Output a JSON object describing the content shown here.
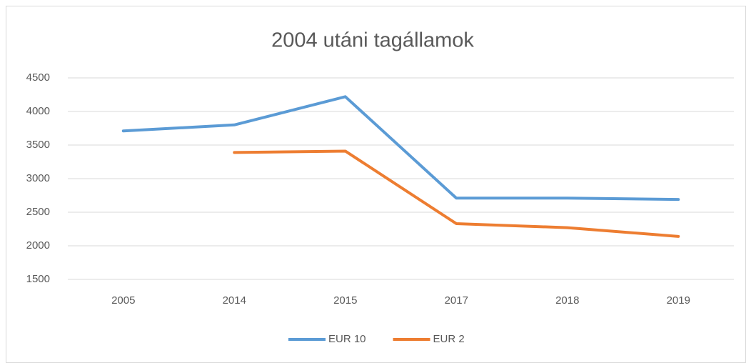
{
  "chart_data": {
    "type": "line",
    "title": "2004 utáni tagállamok",
    "categories": [
      "2005",
      "2014",
      "2015",
      "2017",
      "2018",
      "2019"
    ],
    "series": [
      {
        "name": "EUR 10",
        "color": "#5b9bd5",
        "values": [
          3710,
          3800,
          4220,
          2710,
          2710,
          2690
        ]
      },
      {
        "name": "EUR 2",
        "color": "#ed7d31",
        "values": [
          null,
          3390,
          3410,
          2330,
          2270,
          2140
        ]
      }
    ],
    "ylim": [
      1500,
      4500
    ],
    "yticks": [
      1500,
      2000,
      2500,
      3000,
      3500,
      4000,
      4500
    ],
    "grid": true,
    "legend": "bottom"
  }
}
